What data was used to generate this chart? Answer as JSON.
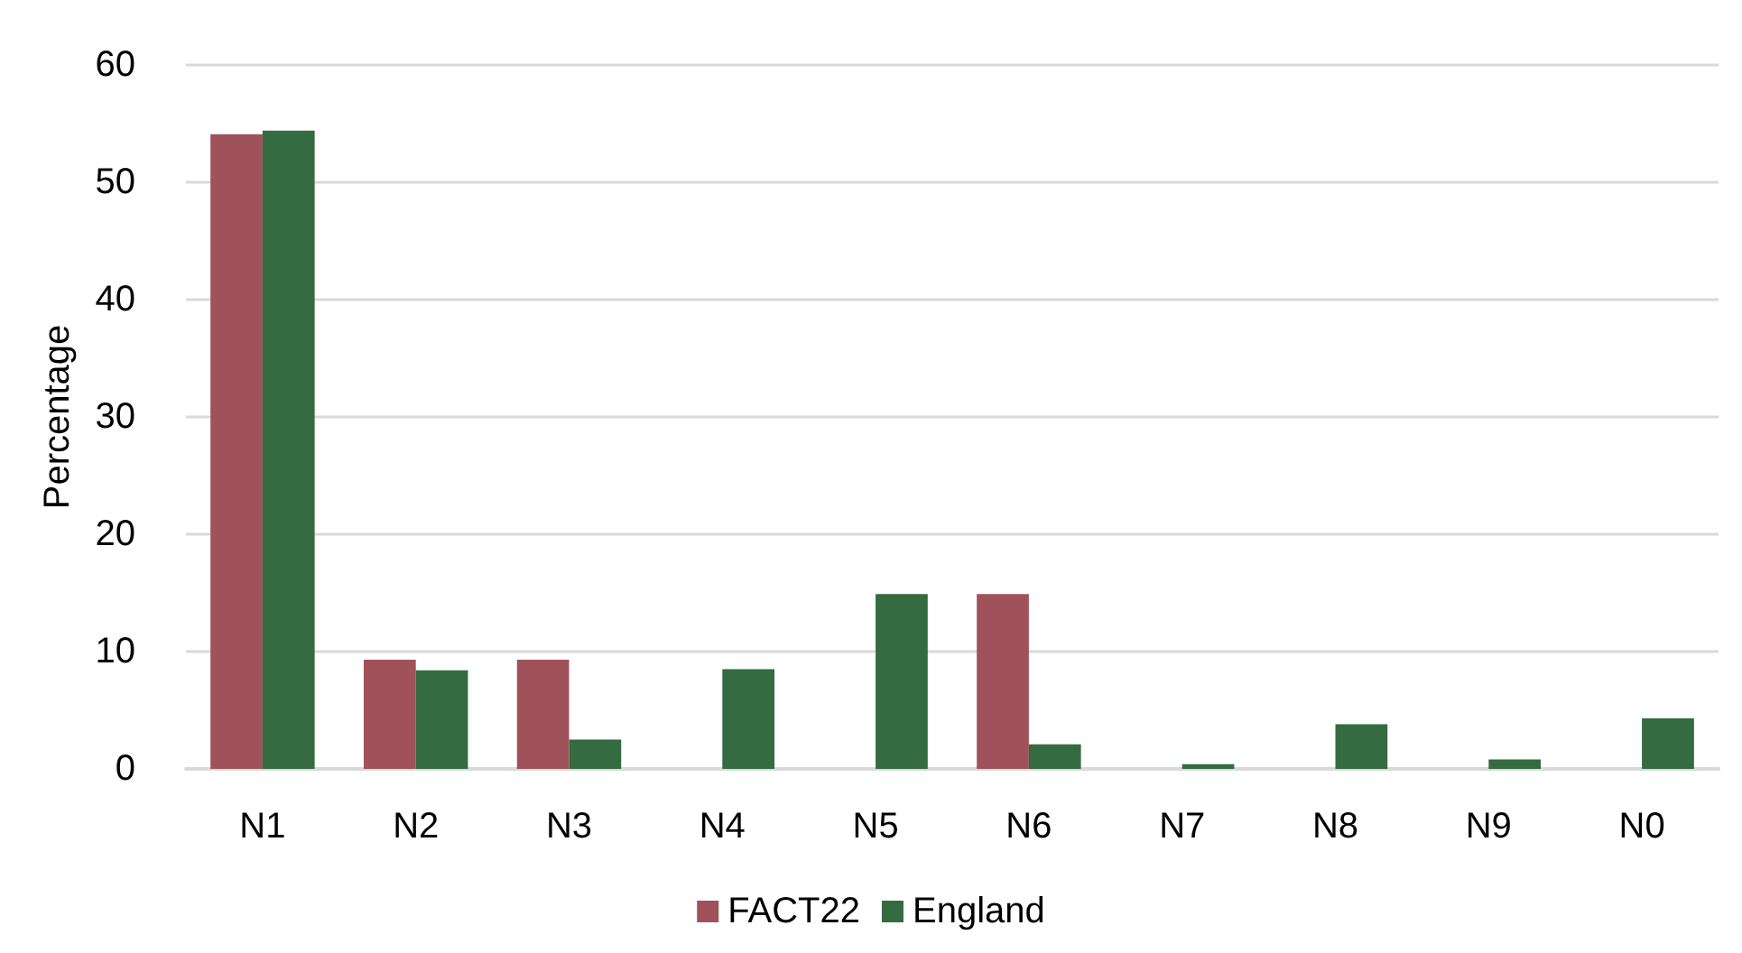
{
  "chart_data": {
    "type": "bar",
    "ylabel": "Percentage",
    "categories": [
      "N1",
      "N2",
      "N3",
      "N4",
      "N5",
      "N6",
      "N7",
      "N8",
      "N9",
      "N0"
    ],
    "series": [
      {
        "name": "FACT22",
        "color": "#a0525a",
        "values": [
          54.1,
          9.3,
          9.3,
          0,
          0,
          14.9,
          0,
          0,
          0,
          0
        ]
      },
      {
        "name": "England",
        "color": "#346b41",
        "values": [
          54.4,
          8.4,
          2.5,
          8.5,
          14.9,
          2.1,
          0.4,
          3.8,
          0.8,
          4.3
        ]
      }
    ],
    "ylim": [
      0,
      60
    ],
    "yticks": [
      0,
      10,
      20,
      30,
      40,
      50,
      60
    ],
    "grid": "y",
    "legend": "bottom"
  }
}
